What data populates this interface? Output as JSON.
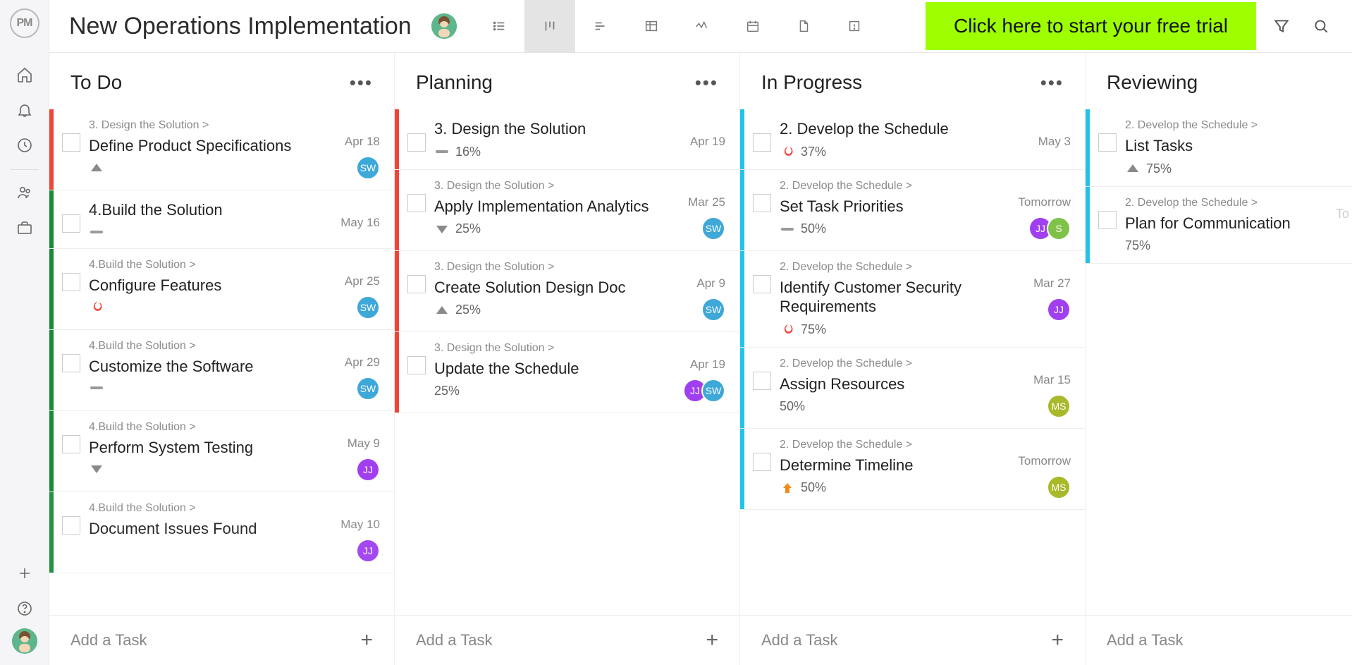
{
  "app": {
    "logo_text": "PM",
    "project_title": "New Operations Implementation",
    "trial_cta": "Click here to start your free trial",
    "trial_bg": "#9dff00"
  },
  "avatar_palette": {
    "SW": "#3ea8d8",
    "JJ": "#a03ff0",
    "MS": "#a8b92a",
    "S": "#7fc24a"
  },
  "stripe_palette": {
    "red": "#f04438",
    "green": "#1a8a3a",
    "blue": "#20c4e8"
  },
  "priority_palette": {
    "up_grey": "#8a8a8a",
    "dash_grey": "#9a9a9a",
    "down_grey": "#8a8a8a",
    "fire": "#f04438",
    "up_orange": "#f08c1a"
  },
  "add_task_label": "Add a Task",
  "columns": [
    {
      "title": "To Do",
      "add_task": true,
      "cards": [
        {
          "stripe": "red",
          "crumb": "3. Design the Solution >",
          "title": "Define Product Specifications",
          "priority": "up_grey",
          "pct": "",
          "due": "Apr 18",
          "avatars": [
            "SW"
          ]
        },
        {
          "stripe": "green",
          "crumb": "",
          "title": "4.Build the Solution",
          "priority": "dash_grey",
          "pct": "",
          "due": "May 16",
          "avatars": []
        },
        {
          "stripe": "green",
          "crumb": "4.Build the Solution >",
          "title": "Configure Features",
          "priority": "fire",
          "pct": "",
          "due": "Apr 25",
          "avatars": [
            "SW"
          ]
        },
        {
          "stripe": "green",
          "crumb": "4.Build the Solution >",
          "title": "Customize the Software",
          "priority": "dash_grey",
          "pct": "",
          "due": "Apr 29",
          "avatars": [
            "SW"
          ]
        },
        {
          "stripe": "green",
          "crumb": "4.Build the Solution >",
          "title": "Perform System Testing",
          "priority": "down_grey",
          "pct": "",
          "due": "May 9",
          "avatars": [
            "JJ"
          ]
        },
        {
          "stripe": "green",
          "crumb": "4.Build the Solution >",
          "title": "Document Issues Found",
          "priority": "",
          "pct": "",
          "due": "May 10",
          "avatars": [
            "JJ"
          ],
          "cut": true
        }
      ]
    },
    {
      "title": "Planning",
      "add_task": true,
      "cards": [
        {
          "stripe": "red",
          "crumb": "",
          "title": "3. Design the Solution",
          "priority": "dash_grey",
          "pct": "16%",
          "due": "Apr 19",
          "avatars": []
        },
        {
          "stripe": "red",
          "crumb": "3. Design the Solution >",
          "title": "Apply Implementation Analytics",
          "priority": "down_grey",
          "pct": "25%",
          "due": "Mar 25",
          "avatars": [
            "SW"
          ]
        },
        {
          "stripe": "red",
          "crumb": "3. Design the Solution >",
          "title": "Create Solution Design Doc",
          "priority": "up_grey",
          "pct": "25%",
          "due": "Apr 9",
          "avatars": [
            "SW"
          ]
        },
        {
          "stripe": "red",
          "crumb": "3. Design the Solution >",
          "title": "Update the Schedule",
          "priority": "",
          "pct": "25%",
          "due": "Apr 19",
          "avatars": [
            "JJ",
            "SW"
          ]
        }
      ]
    },
    {
      "title": "In Progress",
      "add_task": true,
      "cards": [
        {
          "stripe": "blue",
          "crumb": "",
          "title": "2. Develop the Schedule",
          "priority": "fire",
          "pct": "37%",
          "due": "May 3",
          "avatars": []
        },
        {
          "stripe": "blue",
          "crumb": "2. Develop the Schedule >",
          "title": "Set Task Priorities",
          "priority": "dash_grey",
          "pct": "50%",
          "due": "Tomorrow",
          "avatars": [
            "JJ",
            "S"
          ]
        },
        {
          "stripe": "blue",
          "crumb": "2. Develop the Schedule >",
          "title": "Identify Customer Security Requirements",
          "priority": "fire",
          "pct": "75%",
          "due": "Mar 27",
          "avatars": [
            "JJ"
          ]
        },
        {
          "stripe": "blue",
          "crumb": "2. Develop the Schedule >",
          "title": "Assign Resources",
          "priority": "",
          "pct": "50%",
          "due": "Mar 15",
          "avatars": [
            "MS"
          ]
        },
        {
          "stripe": "blue",
          "crumb": "2. Develop the Schedule >",
          "title": "Determine Timeline",
          "priority": "up_orange",
          "pct": "50%",
          "due": "Tomorrow",
          "avatars": [
            "MS"
          ]
        }
      ]
    },
    {
      "title": "Reviewing",
      "add_task": true,
      "no_menu": true,
      "cards": [
        {
          "stripe": "blue",
          "crumb": "2. Develop the Schedule >",
          "title": "List Tasks",
          "priority": "up_grey",
          "pct": "75%",
          "due": "",
          "avatars": []
        },
        {
          "stripe": "blue",
          "crumb": "2. Develop the Schedule >",
          "title": "Plan for Communication",
          "priority": "",
          "pct": "75%",
          "due": "",
          "avatars": []
        }
      ]
    }
  ],
  "cutoff_text": "To"
}
